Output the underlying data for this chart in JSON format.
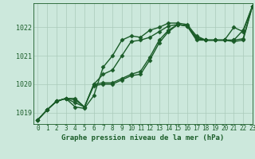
{
  "title": "Graphe pression niveau de la mer (hPa)",
  "background_color": "#cce8dc",
  "plot_bg_color": "#cce8dc",
  "line_color": "#1a5c28",
  "grid_color": "#aacaba",
  "xlim": [
    -0.5,
    23
  ],
  "ylim": [
    1018.6,
    1022.85
  ],
  "yticks": [
    1019,
    1020,
    1021,
    1022
  ],
  "series": [
    [
      1018.75,
      1019.1,
      1019.4,
      1019.5,
      1019.5,
      1019.2,
      1019.95,
      1020.0,
      1020.0,
      1020.15,
      1020.3,
      1020.35,
      1020.85,
      1021.45,
      1021.85,
      1022.1,
      1022.05,
      1021.55,
      1021.55,
      1021.55,
      1021.55,
      1021.5,
      1021.55,
      1022.75
    ],
    [
      1018.75,
      1019.1,
      1019.4,
      1019.5,
      1019.45,
      1019.2,
      1020.0,
      1020.05,
      1020.05,
      1020.2,
      1020.35,
      1020.45,
      1020.95,
      1021.55,
      1021.9,
      1022.1,
      1022.05,
      1021.6,
      1021.55,
      1021.55,
      1021.55,
      1021.55,
      1021.6,
      1022.75
    ],
    [
      1018.75,
      1019.1,
      1019.4,
      1019.5,
      1019.35,
      1019.2,
      1020.0,
      1020.35,
      1020.5,
      1021.0,
      1021.5,
      1021.55,
      1021.65,
      1021.85,
      1022.05,
      1022.1,
      1022.05,
      1021.65,
      1021.55,
      1021.55,
      1021.55,
      1022.0,
      1021.85,
      1022.75
    ],
    [
      1018.75,
      1019.1,
      1019.4,
      1019.5,
      1019.2,
      1019.15,
      1019.6,
      1020.6,
      1021.0,
      1021.55,
      1021.7,
      1021.65,
      1021.9,
      1022.0,
      1022.15,
      1022.15,
      1022.1,
      1021.7,
      1021.55,
      1021.55,
      1021.55,
      1021.55,
      1021.9,
      1022.75
    ]
  ],
  "marker": "D",
  "markersize": 2.5,
  "linewidth": 1.0,
  "tick_fontsize": 5.5,
  "label_fontsize": 6.5
}
